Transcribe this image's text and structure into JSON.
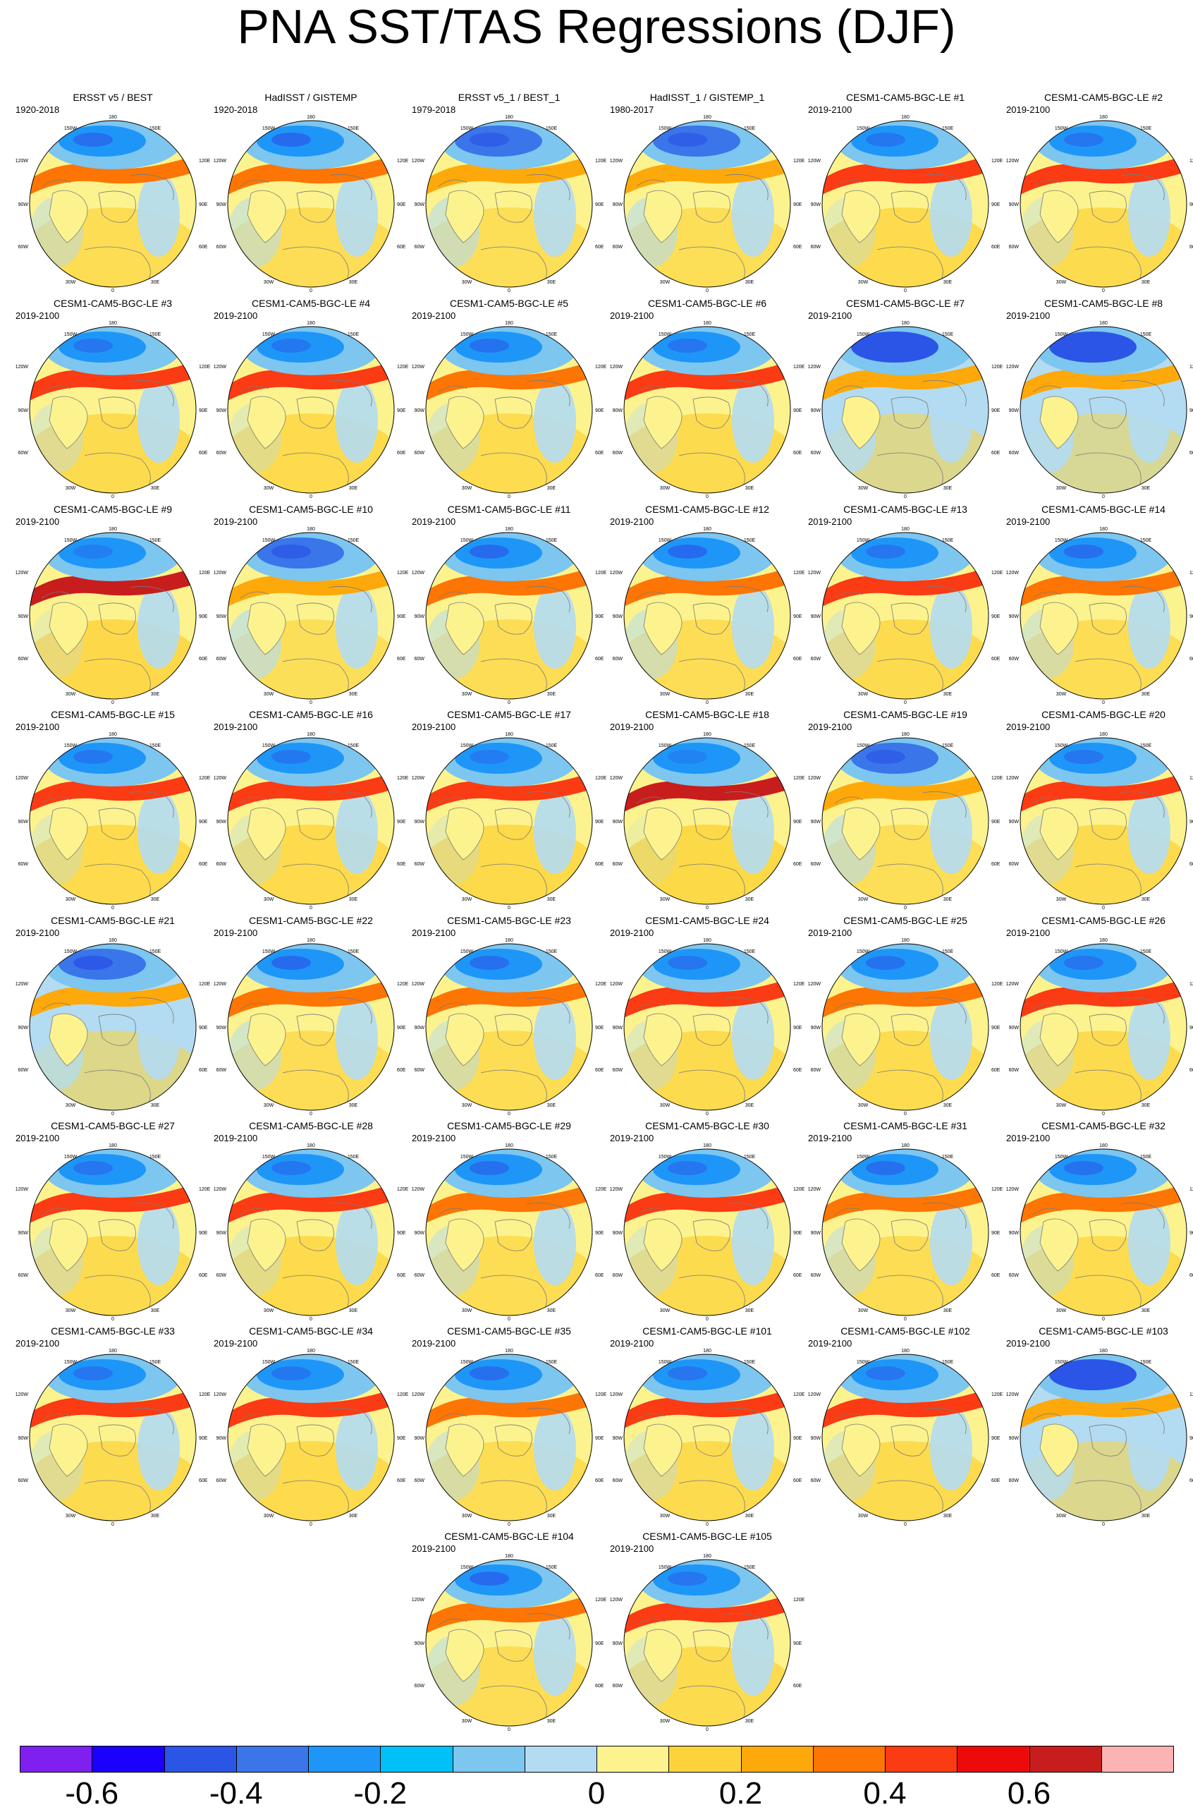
{
  "title": "PNA SST/TAS Regressions (DJF)",
  "lon_labels": {
    "top": "180",
    "upper_left": "150W",
    "upper_right": "150E",
    "left_upper": "120W",
    "right_upper": "120E",
    "left": "90W",
    "right": "90E",
    "left_lower": "60W",
    "right_lower": "60E",
    "lower_left": "30W",
    "lower_right": "30E",
    "bottom": "0"
  },
  "panels": [
    {
      "title": "ERSST v5 / BEST",
      "period": "1920-2018",
      "pattern": 0.6
    },
    {
      "title": "HadISST / GISTEMP",
      "period": "1920-2018",
      "pattern": 0.55
    },
    {
      "title": "ERSST v5_1 / BEST_1",
      "period": "1979-2018",
      "pattern": 0.5
    },
    {
      "title": "HadISST_1 / GISTEMP_1",
      "period": "1980-2017",
      "pattern": 0.5
    },
    {
      "title": "CESM1-CAM5-BGC-LE #1",
      "period": "2019-2100",
      "pattern": 0.75
    },
    {
      "title": "CESM1-CAM5-BGC-LE #2",
      "period": "2019-2100",
      "pattern": 0.7
    },
    {
      "title": "CESM1-CAM5-BGC-LE #3",
      "period": "2019-2100",
      "pattern": 0.7
    },
    {
      "title": "CESM1-CAM5-BGC-LE #4",
      "period": "2019-2100",
      "pattern": 0.75
    },
    {
      "title": "CESM1-CAM5-BGC-LE #5",
      "period": "2019-2100",
      "pattern": 0.65
    },
    {
      "title": "CESM1-CAM5-BGC-LE #6",
      "period": "2019-2100",
      "pattern": 0.7
    },
    {
      "title": "CESM1-CAM5-BGC-LE #7",
      "period": "2019-2100",
      "pattern": 0.3
    },
    {
      "title": "CESM1-CAM5-BGC-LE #8",
      "period": "2019-2100",
      "pattern": 0.2
    },
    {
      "title": "CESM1-CAM5-BGC-LE #9",
      "period": "2019-2100",
      "pattern": 0.85
    },
    {
      "title": "CESM1-CAM5-BGC-LE #10",
      "period": "2019-2100",
      "pattern": 0.45
    },
    {
      "title": "CESM1-CAM5-BGC-LE #11",
      "period": "2019-2100",
      "pattern": 0.55
    },
    {
      "title": "CESM1-CAM5-BGC-LE #12",
      "period": "2019-2100",
      "pattern": 0.55
    },
    {
      "title": "CESM1-CAM5-BGC-LE #13",
      "period": "2019-2100",
      "pattern": 0.7
    },
    {
      "title": "CESM1-CAM5-BGC-LE #14",
      "period": "2019-2100",
      "pattern": 0.6
    },
    {
      "title": "CESM1-CAM5-BGC-LE #15",
      "period": "2019-2100",
      "pattern": 0.75
    },
    {
      "title": "CESM1-CAM5-BGC-LE #16",
      "period": "2019-2100",
      "pattern": 0.75
    },
    {
      "title": "CESM1-CAM5-BGC-LE #17",
      "period": "2019-2100",
      "pattern": 0.8
    },
    {
      "title": "CESM1-CAM5-BGC-LE #18",
      "period": "2019-2100",
      "pattern": 0.9
    },
    {
      "title": "CESM1-CAM5-BGC-LE #19",
      "period": "2019-2100",
      "pattern": 0.5
    },
    {
      "title": "CESM1-CAM5-BGC-LE #20",
      "period": "2019-2100",
      "pattern": 0.7
    },
    {
      "title": "CESM1-CAM5-BGC-LE #21",
      "period": "2019-2100",
      "pattern": 0.35
    },
    {
      "title": "CESM1-CAM5-BGC-LE #22",
      "period": "2019-2100",
      "pattern": 0.55
    },
    {
      "title": "CESM1-CAM5-BGC-LE #23",
      "period": "2019-2100",
      "pattern": 0.6
    },
    {
      "title": "CESM1-CAM5-BGC-LE #24",
      "period": "2019-2100",
      "pattern": 0.7
    },
    {
      "title": "CESM1-CAM5-BGC-LE #25",
      "period": "2019-2100",
      "pattern": 0.65
    },
    {
      "title": "CESM1-CAM5-BGC-LE #26",
      "period": "2019-2100",
      "pattern": 0.7
    },
    {
      "title": "CESM1-CAM5-BGC-LE #27",
      "period": "2019-2100",
      "pattern": 0.7
    },
    {
      "title": "CESM1-CAM5-BGC-LE #28",
      "period": "2019-2100",
      "pattern": 0.75
    },
    {
      "title": "CESM1-CAM5-BGC-LE #29",
      "period": "2019-2100",
      "pattern": 0.6
    },
    {
      "title": "CESM1-CAM5-BGC-LE #30",
      "period": "2019-2100",
      "pattern": 0.7
    },
    {
      "title": "CESM1-CAM5-BGC-LE #31",
      "period": "2019-2100",
      "pattern": 0.6
    },
    {
      "title": "CESM1-CAM5-BGC-LE #32",
      "period": "2019-2100",
      "pattern": 0.65
    },
    {
      "title": "CESM1-CAM5-BGC-LE #33",
      "period": "2019-2100",
      "pattern": 0.7
    },
    {
      "title": "CESM1-CAM5-BGC-LE #34",
      "period": "2019-2100",
      "pattern": 0.75
    },
    {
      "title": "CESM1-CAM5-BGC-LE #35",
      "period": "2019-2100",
      "pattern": 0.6
    },
    {
      "title": "CESM1-CAM5-BGC-LE #101",
      "period": "2019-2100",
      "pattern": 0.7
    },
    {
      "title": "CESM1-CAM5-BGC-LE #102",
      "period": "2019-2100",
      "pattern": 0.7
    },
    {
      "title": "CESM1-CAM5-BGC-LE #103",
      "period": "2019-2100",
      "pattern": 0.3
    },
    {
      "title": "CESM1-CAM5-BGC-LE #104",
      "period": "2019-2100",
      "pattern": 0.55
    },
    {
      "title": "CESM1-CAM5-BGC-LE #105",
      "period": "2019-2100",
      "pattern": 0.7
    }
  ],
  "colorbar": {
    "colors": [
      "#7f1ff0",
      "#1b00fb",
      "#2b55e6",
      "#3a75ea",
      "#1e96f8",
      "#00c0f8",
      "#7cc6f0",
      "#b3dcf2",
      "#fdf38e",
      "#fcd33a",
      "#fda90b",
      "#fd7504",
      "#fb3b13",
      "#ec0a0a",
      "#c81d1d",
      "#fcb3b3"
    ],
    "labels": [
      "-0.6",
      "-0.4",
      "-0.2",
      "0",
      "0.2",
      "0.4",
      "0.6"
    ],
    "label_boundaries": [
      1,
      3,
      5,
      8,
      10,
      12,
      14
    ]
  }
}
